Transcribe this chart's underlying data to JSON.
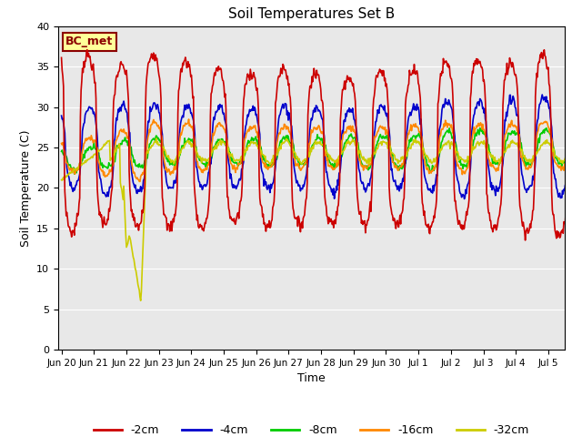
{
  "title": "Soil Temperatures Set B",
  "xlabel": "Time",
  "ylabel": "Soil Temperature (C)",
  "ylim": [
    0,
    40
  ],
  "facecolor": "#e8e8e8",
  "annotation_text": "BC_met",
  "annotation_bg": "#ffff99",
  "annotation_border": "#8b0000",
  "colors": {
    "-2cm": "#cc0000",
    "-4cm": "#0000cc",
    "-8cm": "#00cc00",
    "-16cm": "#ff8800",
    "-32cm": "#cccc00"
  },
  "xtick_labels": [
    "Jun 20",
    "Jun 21",
    "Jun 22",
    "Jun 23",
    "Jun 24",
    "Jun 25",
    "Jun 26",
    "Jun 27",
    "Jun 28",
    "Jun 29",
    "Jun 30",
    "Jul 1",
    "Jul 2",
    "Jul 3",
    "Jul 4",
    "Jul 5"
  ],
  "ytick_positions": [
    0,
    5,
    10,
    15,
    20,
    25,
    30,
    35,
    40
  ],
  "legend_labels": [
    "-2cm",
    "-4cm",
    "-8cm",
    "-16cm",
    "-32cm"
  ],
  "legend_colors": [
    "#cc0000",
    "#0000cc",
    "#00cc00",
    "#ff8800",
    "#cccc00"
  ]
}
